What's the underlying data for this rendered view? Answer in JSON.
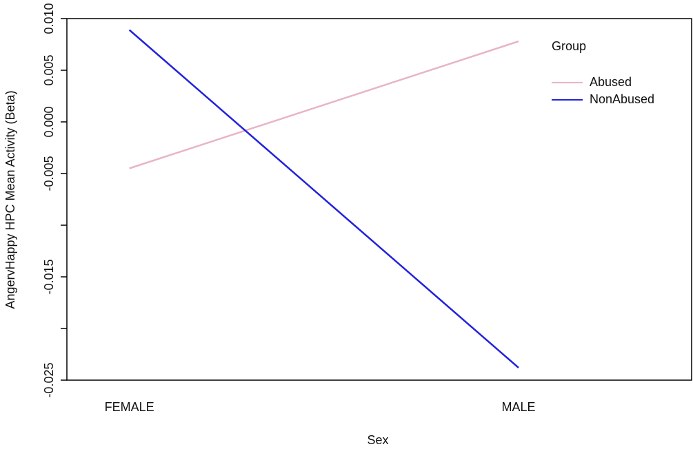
{
  "chart_data": {
    "type": "line",
    "x_label": "Sex",
    "y_label": "AngervHappy HPC Mean Activity (Beta)",
    "categories": [
      "FEMALE",
      "MALE"
    ],
    "series": [
      {
        "name": "Abused",
        "color": "#e8b4c8",
        "values": [
          -0.0045,
          0.0078
        ]
      },
      {
        "name": "NonAbused",
        "color": "#2222dd",
        "values": [
          0.0089,
          -0.0238
        ]
      }
    ],
    "legend_title": "Group",
    "legend_position": "top-right",
    "ylim": [
      -0.025,
      0.01
    ],
    "yticks": [
      {
        "value": 0.01,
        "label": "0.010"
      },
      {
        "value": 0.005,
        "label": "0.005"
      },
      {
        "value": 0,
        "label": "0.000"
      },
      {
        "value": -0.005,
        "label": "-0.005"
      },
      {
        "value": -0.01,
        "label": null
      },
      {
        "value": -0.015,
        "label": "-0.015"
      },
      {
        "value": -0.02,
        "label": null
      },
      {
        "value": -0.025,
        "label": "-0.025"
      }
    ]
  }
}
